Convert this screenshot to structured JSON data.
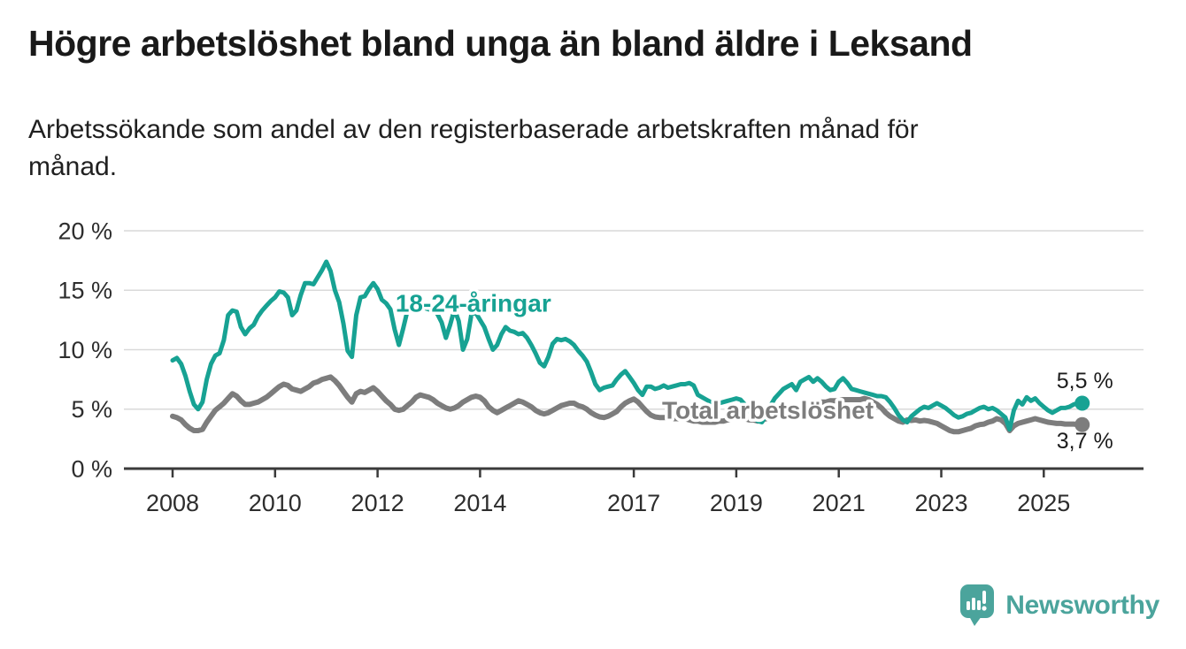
{
  "header": {
    "title": "Högre arbetslöshet bland unga än bland äldre i Leksand",
    "subtitle_line1": "Arbetssökande som andel av den registerbaserade arbetskraften månad för",
    "subtitle_line2": "månad."
  },
  "footer": {
    "brand": "Newsworthy",
    "logo_icon": "newsworthy-speech-bubble-bar-chart-icon",
    "brand_color": "#4ba49c"
  },
  "chart_data": {
    "type": "line",
    "title": "Högre arbetslöshet bland unga än bland äldre i Leksand",
    "subtitle": "Arbetssökande som andel av den registerbaserade arbetskraften månad för månad.",
    "unit": "percent",
    "grid": true,
    "legend_position": "inline-labels",
    "colors": {
      "axis": "#3a3a3a",
      "grid": "#d9d9d9",
      "axis_text": "#2d2d2d",
      "end_label_text": "#1d1d1d"
    },
    "x_axis": {
      "label_years": [
        2008,
        2010,
        2012,
        2014,
        2017,
        2019,
        2021,
        2023,
        2025
      ],
      "range": [
        2007.8,
        2026.1
      ]
    },
    "y_axis": {
      "ticks": [
        0,
        5,
        10,
        15,
        20
      ],
      "tick_suffix": " %",
      "range": [
        0,
        20
      ]
    },
    "series": [
      {
        "id": "youth",
        "name": "18-24-åringar",
        "color": "#17a293",
        "stroke_width": 5,
        "label": {
          "text": "18-24-åringar",
          "x": 2012.35,
          "y": 13.2
        },
        "end_dot": true,
        "end_label": {
          "text": "5,5 %",
          "position": "above"
        },
        "last_value": 5.5,
        "start_year": 2008,
        "interval_months": 1,
        "values": [
          9.1,
          9.3,
          8.8,
          7.8,
          6.5,
          5.4,
          5.0,
          5.6,
          7.5,
          8.8,
          9.5,
          9.7,
          10.8,
          12.9,
          13.3,
          13.2,
          11.9,
          11.3,
          11.8,
          12.1,
          12.8,
          13.3,
          13.7,
          14.1,
          14.4,
          14.9,
          14.8,
          14.4,
          12.9,
          13.3,
          14.6,
          15.6,
          15.6,
          15.5,
          16.1,
          16.7,
          17.4,
          16.6,
          15.0,
          14.0,
          12.2,
          9.9,
          9.4,
          12.9,
          14.4,
          14.5,
          15.1,
          15.6,
          15.1,
          14.2,
          13.9,
          13.4,
          11.7,
          10.4,
          11.8,
          13.3,
          13.8,
          13.3,
          13.5,
          13.5,
          13.4,
          13.3,
          13.0,
          12.3,
          11.0,
          12.1,
          13.4,
          12.4,
          10.0,
          10.9,
          13.0,
          13.1,
          12.5,
          11.9,
          10.9,
          10.0,
          10.4,
          11.3,
          11.9,
          11.6,
          11.5,
          11.3,
          11.4,
          11.0,
          10.4,
          9.7,
          8.9,
          8.6,
          9.4,
          10.5,
          10.9,
          10.8,
          10.9,
          10.7,
          10.4,
          9.9,
          9.5,
          9.0,
          8.1,
          7.1,
          6.6,
          6.8,
          6.9,
          7.0,
          7.5,
          7.9,
          8.2,
          7.7,
          7.2,
          6.6,
          6.2,
          6.9,
          6.9,
          6.7,
          6.8,
          7.0,
          6.8,
          6.9,
          7.0,
          7.1,
          7.1,
          7.2,
          7.0,
          6.2,
          6.0,
          5.8,
          5.6,
          5.5,
          5.5,
          5.6,
          5.7,
          5.8,
          5.9,
          5.8,
          5.4,
          4.8,
          4.3,
          4.0,
          3.9,
          4.5,
          5.3,
          5.9,
          6.3,
          6.7,
          6.9,
          7.1,
          6.6,
          7.3,
          7.5,
          7.7,
          7.3,
          7.6,
          7.3,
          6.9,
          6.6,
          6.7,
          7.3,
          7.6,
          7.2,
          6.7,
          6.6,
          6.5,
          6.4,
          6.3,
          6.2,
          6.1,
          6.1,
          6.0,
          5.6,
          5.1,
          4.5,
          4.1,
          3.9,
          4.4,
          4.7,
          5.0,
          5.2,
          5.1,
          5.3,
          5.5,
          5.3,
          5.1,
          4.8,
          4.5,
          4.3,
          4.4,
          4.6,
          4.7,
          4.9,
          5.1,
          5.2,
          5.0,
          5.1,
          4.9,
          4.6,
          4.3,
          3.3,
          4.9,
          5.7,
          5.4,
          6.0,
          5.7,
          5.9,
          5.5,
          5.2,
          4.9,
          4.7,
          4.9,
          5.1,
          5.1,
          5.2,
          5.4,
          5.5,
          5.5
        ]
      },
      {
        "id": "total",
        "name": "Total arbetslöshet",
        "color": "#7d7d7d",
        "stroke_width": 6,
        "label": {
          "text": "Total arbetslöshet",
          "x": 2017.55,
          "y": 4.2
        },
        "end_dot": true,
        "end_label": {
          "text": "3,7 %",
          "position": "below"
        },
        "last_value": 3.7,
        "start_year": 2008,
        "interval_months": 1,
        "values": [
          4.4,
          4.3,
          4.1,
          3.7,
          3.4,
          3.2,
          3.2,
          3.3,
          3.9,
          4.4,
          4.9,
          5.2,
          5.5,
          5.9,
          6.3,
          6.1,
          5.7,
          5.4,
          5.4,
          5.5,
          5.6,
          5.8,
          6.0,
          6.3,
          6.6,
          6.9,
          7.1,
          7.0,
          6.7,
          6.6,
          6.5,
          6.7,
          6.9,
          7.2,
          7.3,
          7.5,
          7.6,
          7.7,
          7.4,
          7.0,
          6.5,
          6.0,
          5.6,
          6.3,
          6.5,
          6.4,
          6.6,
          6.8,
          6.5,
          6.1,
          5.7,
          5.4,
          5.0,
          4.9,
          5.0,
          5.3,
          5.6,
          6.0,
          6.2,
          6.1,
          6.0,
          5.8,
          5.5,
          5.3,
          5.1,
          5.0,
          5.1,
          5.3,
          5.6,
          5.8,
          6.0,
          6.1,
          6.0,
          5.7,
          5.2,
          4.9,
          4.7,
          4.9,
          5.1,
          5.3,
          5.5,
          5.7,
          5.6,
          5.4,
          5.2,
          4.9,
          4.7,
          4.6,
          4.7,
          4.9,
          5.1,
          5.3,
          5.4,
          5.5,
          5.5,
          5.3,
          5.2,
          5.0,
          4.7,
          4.5,
          4.35,
          4.3,
          4.4,
          4.6,
          4.8,
          5.2,
          5.5,
          5.7,
          5.85,
          5.6,
          5.2,
          4.8,
          4.5,
          4.35,
          4.3,
          4.3,
          4.3,
          4.2,
          4.2,
          4.2,
          4.2,
          4.1,
          4.0,
          4.0,
          3.9,
          3.9,
          3.9,
          3.9,
          4.0,
          4.0,
          4.1,
          4.2,
          4.3,
          4.3,
          4.2,
          4.1,
          4.1,
          4.0,
          4.1,
          4.2,
          4.4,
          4.5,
          4.6,
          4.7,
          4.8,
          4.9,
          5.0,
          5.2,
          5.4,
          5.5,
          5.6,
          5.6,
          5.6,
          5.6,
          5.7,
          5.7,
          5.7,
          5.8,
          5.8,
          5.8,
          5.8,
          5.8,
          5.9,
          5.8,
          5.6,
          5.4,
          5.1,
          4.7,
          4.4,
          4.2,
          4.0,
          3.9,
          4.1,
          4.05,
          4.1,
          4.0,
          4.05,
          4.0,
          3.9,
          3.8,
          3.6,
          3.4,
          3.2,
          3.1,
          3.1,
          3.2,
          3.3,
          3.4,
          3.6,
          3.7,
          3.75,
          3.9,
          4.0,
          4.2,
          4.1,
          3.8,
          3.2,
          3.6,
          3.8,
          3.9,
          4.0,
          4.1,
          4.2,
          4.1,
          4.0,
          3.9,
          3.85,
          3.8,
          3.8,
          3.75,
          3.75,
          3.75,
          3.7,
          3.7
        ]
      }
    ]
  }
}
